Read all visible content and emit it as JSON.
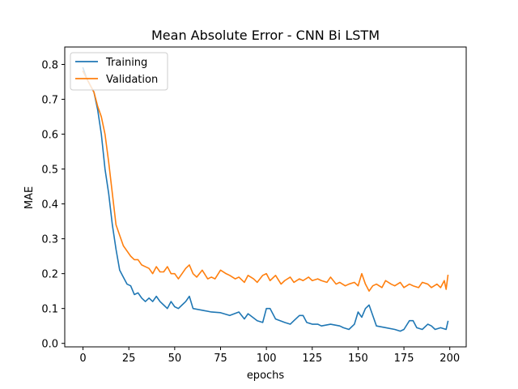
{
  "chart_data": {
    "type": "line",
    "title": "Mean Absolute Error - CNN Bi LSTM",
    "xlabel": "epochs",
    "ylabel": "MAE",
    "xlim": [
      -9.95,
      208.95
    ],
    "ylim": [
      -0.01,
      0.85
    ],
    "xticks": [
      0,
      25,
      50,
      75,
      100,
      125,
      150,
      175,
      200
    ],
    "yticks": [
      0.0,
      0.1,
      0.2,
      0.3,
      0.4,
      0.5,
      0.6,
      0.7,
      0.8
    ],
    "grid": false,
    "legend_position": "upper left",
    "series": [
      {
        "name": "Training",
        "color": "#1f77b4",
        "x": [
          0,
          2,
          4,
          6,
          8,
          10,
          12,
          14,
          16,
          18,
          20,
          22,
          24,
          26,
          28,
          30,
          32,
          34,
          36,
          38,
          40,
          42,
          44,
          46,
          48,
          50,
          52,
          54,
          56,
          58,
          60,
          65,
          70,
          75,
          80,
          85,
          88,
          90,
          95,
          98,
          100,
          102,
          105,
          110,
          113,
          115,
          118,
          120,
          122,
          125,
          128,
          130,
          135,
          140,
          142,
          145,
          148,
          150,
          152,
          154,
          156,
          158,
          160,
          165,
          170,
          173,
          175,
          178,
          180,
          182,
          185,
          188,
          190,
          192,
          195,
          198,
          199
        ],
        "y": [
          0.79,
          0.76,
          0.74,
          0.72,
          0.67,
          0.6,
          0.5,
          0.43,
          0.34,
          0.27,
          0.21,
          0.19,
          0.17,
          0.165,
          0.14,
          0.145,
          0.13,
          0.12,
          0.13,
          0.12,
          0.135,
          0.12,
          0.11,
          0.1,
          0.12,
          0.105,
          0.1,
          0.11,
          0.12,
          0.135,
          0.1,
          0.095,
          0.09,
          0.088,
          0.08,
          0.09,
          0.07,
          0.085,
          0.065,
          0.06,
          0.1,
          0.1,
          0.07,
          0.06,
          0.055,
          0.065,
          0.08,
          0.08,
          0.06,
          0.055,
          0.055,
          0.05,
          0.055,
          0.05,
          0.045,
          0.04,
          0.055,
          0.09,
          0.075,
          0.1,
          0.11,
          0.08,
          0.05,
          0.045,
          0.04,
          0.035,
          0.04,
          0.065,
          0.065,
          0.045,
          0.04,
          0.055,
          0.05,
          0.04,
          0.045,
          0.04,
          0.063
        ]
      },
      {
        "name": "Validation",
        "color": "#ff7f0e",
        "x": [
          0,
          2,
          4,
          6,
          8,
          10,
          12,
          14,
          16,
          18,
          20,
          22,
          24,
          26,
          28,
          30,
          32,
          34,
          36,
          38,
          40,
          42,
          44,
          46,
          48,
          50,
          52,
          54,
          56,
          58,
          60,
          62,
          65,
          68,
          70,
          72,
          75,
          78,
          80,
          83,
          85,
          88,
          90,
          93,
          95,
          98,
          100,
          102,
          105,
          108,
          110,
          113,
          115,
          118,
          120,
          123,
          125,
          128,
          130,
          133,
          135,
          138,
          140,
          143,
          145,
          148,
          150,
          152,
          154,
          156,
          158,
          160,
          163,
          165,
          168,
          170,
          173,
          175,
          178,
          180,
          183,
          185,
          188,
          190,
          193,
          195,
          197,
          198,
          199
        ],
        "y": [
          0.78,
          0.76,
          0.74,
          0.72,
          0.68,
          0.65,
          0.6,
          0.52,
          0.43,
          0.34,
          0.31,
          0.28,
          0.265,
          0.25,
          0.24,
          0.24,
          0.225,
          0.22,
          0.215,
          0.2,
          0.22,
          0.205,
          0.205,
          0.22,
          0.2,
          0.2,
          0.185,
          0.2,
          0.215,
          0.225,
          0.2,
          0.19,
          0.21,
          0.185,
          0.19,
          0.185,
          0.21,
          0.2,
          0.195,
          0.185,
          0.19,
          0.175,
          0.195,
          0.185,
          0.175,
          0.195,
          0.2,
          0.18,
          0.195,
          0.17,
          0.18,
          0.19,
          0.175,
          0.185,
          0.18,
          0.19,
          0.18,
          0.185,
          0.18,
          0.175,
          0.19,
          0.17,
          0.175,
          0.165,
          0.17,
          0.175,
          0.165,
          0.2,
          0.17,
          0.15,
          0.165,
          0.17,
          0.16,
          0.18,
          0.17,
          0.165,
          0.175,
          0.16,
          0.17,
          0.165,
          0.16,
          0.175,
          0.17,
          0.16,
          0.17,
          0.16,
          0.18,
          0.155,
          0.195
        ]
      }
    ]
  }
}
